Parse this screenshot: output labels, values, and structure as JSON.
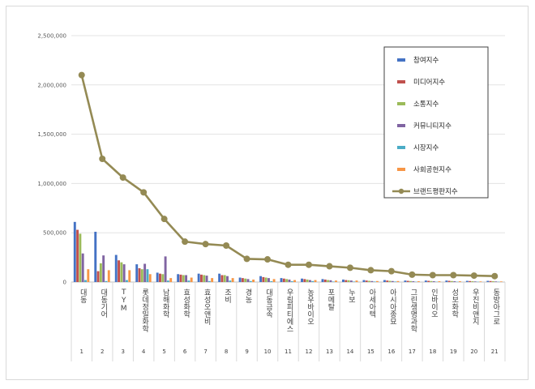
{
  "chart_data": {
    "type": "bar",
    "title": "",
    "xlabel": "",
    "ylabel": "",
    "ylim": [
      0,
      2500000
    ],
    "yticks": [
      0,
      500000,
      1000000,
      1500000,
      2000000,
      2500000
    ],
    "ytick_labels": [
      "0",
      "500,000",
      "1,000,000",
      "1,500,000",
      "2,000,000",
      "2,500,000"
    ],
    "grid": true,
    "legend_position": "top-right",
    "categories": [
      "대동",
      "대동기어",
      "TYM",
      "롯데정밀화학",
      "남해화학",
      "효성화학",
      "효성오앤비",
      "조비",
      "경농",
      "대동금속",
      "우림피티에스",
      "농우바이오",
      "포메탈",
      "누보",
      "아세아텍",
      "아시아종묘",
      "그린생명과학",
      "인바이오",
      "성보화학",
      "우진비앤지",
      "동방아그로"
    ],
    "ranks": [
      "1",
      "2",
      "3",
      "4",
      "5",
      "6",
      "7",
      "8",
      "9",
      "10",
      "11",
      "12",
      "13",
      "14",
      "15",
      "16",
      "17",
      "18",
      "19",
      "20",
      "21"
    ],
    "series": [
      {
        "name": "참여지수",
        "kind": "bar",
        "color": "#4472C4",
        "values": [
          610000,
          510000,
          275000,
          180000,
          95000,
          80000,
          85000,
          85000,
          45000,
          60000,
          40000,
          35000,
          30000,
          25000,
          20000,
          20000,
          15000,
          15000,
          15000,
          12000,
          12000
        ]
      },
      {
        "name": "미디어지수",
        "kind": "bar",
        "color": "#C0504D",
        "values": [
          530000,
          110000,
          220000,
          140000,
          85000,
          75000,
          75000,
          70000,
          40000,
          50000,
          35000,
          30000,
          25000,
          20000,
          15000,
          15000,
          12000,
          12000,
          12000,
          10000,
          10000
        ]
      },
      {
        "name": "소통지수",
        "kind": "bar",
        "color": "#9BBB59",
        "values": [
          490000,
          190000,
          200000,
          130000,
          80000,
          70000,
          70000,
          70000,
          35000,
          45000,
          30000,
          25000,
          20000,
          18000,
          12000,
          12000,
          10000,
          10000,
          10000,
          8000,
          8000
        ]
      },
      {
        "name": "커뮤니티지수",
        "kind": "bar",
        "color": "#8064A2",
        "values": [
          290000,
          270000,
          180000,
          185000,
          260000,
          70000,
          65000,
          60000,
          30000,
          40000,
          25000,
          20000,
          18000,
          15000,
          10000,
          10000,
          8000,
          8000,
          8000,
          6000,
          6000
        ]
      },
      {
        "name": "시장지수",
        "kind": "bar",
        "color": "#4BACC6",
        "values": [
          20000,
          10000,
          20000,
          130000,
          15000,
          15000,
          10000,
          15000,
          10000,
          8000,
          8000,
          10000,
          5000,
          5000,
          5000,
          5000,
          3000,
          3000,
          3000,
          3000,
          3000
        ]
      },
      {
        "name": "사회공헌지수",
        "kind": "bar",
        "color": "#F79646",
        "values": [
          130000,
          120000,
          120000,
          80000,
          40000,
          45000,
          40000,
          40000,
          25000,
          30000,
          20000,
          20000,
          15000,
          15000,
          10000,
          10000,
          8000,
          8000,
          8000,
          6000,
          6000
        ]
      },
      {
        "name": "브랜드평판지수",
        "kind": "line",
        "color": "#948A54",
        "values": [
          2100000,
          1250000,
          1060000,
          910000,
          640000,
          410000,
          385000,
          370000,
          235000,
          230000,
          175000,
          175000,
          160000,
          145000,
          120000,
          110000,
          75000,
          70000,
          70000,
          65000,
          60000
        ]
      }
    ]
  }
}
